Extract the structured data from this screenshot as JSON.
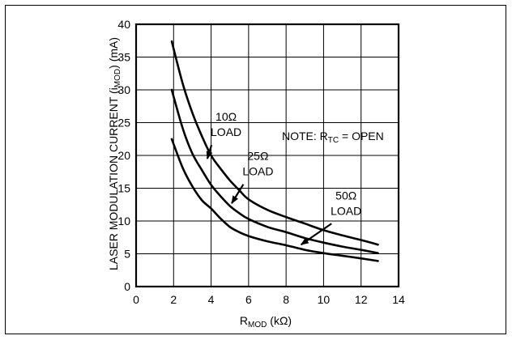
{
  "chart_data": {
    "type": "line",
    "xlabel": {
      "main": "R",
      "sub": "MOD",
      "unit": " (kΩ)"
    },
    "ylabel": {
      "pre": "LASER MODULATION  CURRENT (i",
      "sub": "MOD",
      "post": ") (mA)"
    },
    "xlim": [
      0,
      14
    ],
    "ylim": [
      0,
      40
    ],
    "xticks": [
      0,
      2,
      4,
      6,
      8,
      10,
      12,
      14
    ],
    "yticks": [
      0,
      5,
      10,
      15,
      20,
      25,
      30,
      35,
      40
    ],
    "grid": true,
    "series": [
      {
        "x": [
          1.9,
          2.5,
          3,
          3.5,
          4,
          4.5,
          5,
          5.5,
          6,
          7,
          8,
          9,
          10,
          11,
          12,
          12.9
        ],
        "y": [
          37.4,
          30.8,
          26.5,
          23,
          20,
          18,
          16.2,
          14.7,
          13.3,
          11.7,
          10.6,
          9.6,
          8.6,
          7.8,
          7.1,
          6.4
        ]
      },
      {
        "x": [
          1.9,
          2.5,
          3,
          3.5,
          4,
          4.5,
          5,
          5.5,
          6,
          7,
          8,
          9,
          10,
          11,
          12,
          12.9
        ],
        "y": [
          30,
          24,
          20.3,
          17.8,
          15.5,
          13.8,
          12.3,
          11.2,
          10.3,
          9.1,
          8.3,
          7.4,
          6.7,
          6.1,
          5.6,
          5.1
        ]
      },
      {
        "x": [
          1.9,
          2.5,
          3,
          3.5,
          4,
          4.5,
          5,
          5.5,
          6,
          7,
          8,
          9,
          10,
          11,
          12,
          12.9
        ],
        "y": [
          22.5,
          18,
          15.3,
          13.2,
          11.9,
          10.4,
          9.1,
          8.3,
          7.7,
          6.9,
          6.3,
          5.6,
          5.1,
          4.7,
          4.3,
          3.9
        ]
      }
    ],
    "annotations": [
      {
        "id": "a10",
        "lines": [
          "10Ω",
          "LOAD"
        ],
        "tx": 4.8,
        "ty": 25.3,
        "ax": 3.8,
        "ay": 19.5
      },
      {
        "id": "a25",
        "lines": [
          "25Ω",
          "LOAD"
        ],
        "tx": 6.5,
        "ty": 19.3,
        "ax": 5.1,
        "ay": 12.7
      },
      {
        "id": "a50",
        "lines": [
          "50Ω",
          "LOAD"
        ],
        "tx": 11.2,
        "ty": 13.3,
        "ax": 8.8,
        "ay": 6.4
      }
    ],
    "note": {
      "pre": "NOTE: R",
      "sub": "TC",
      "post": " = OPEN"
    }
  }
}
